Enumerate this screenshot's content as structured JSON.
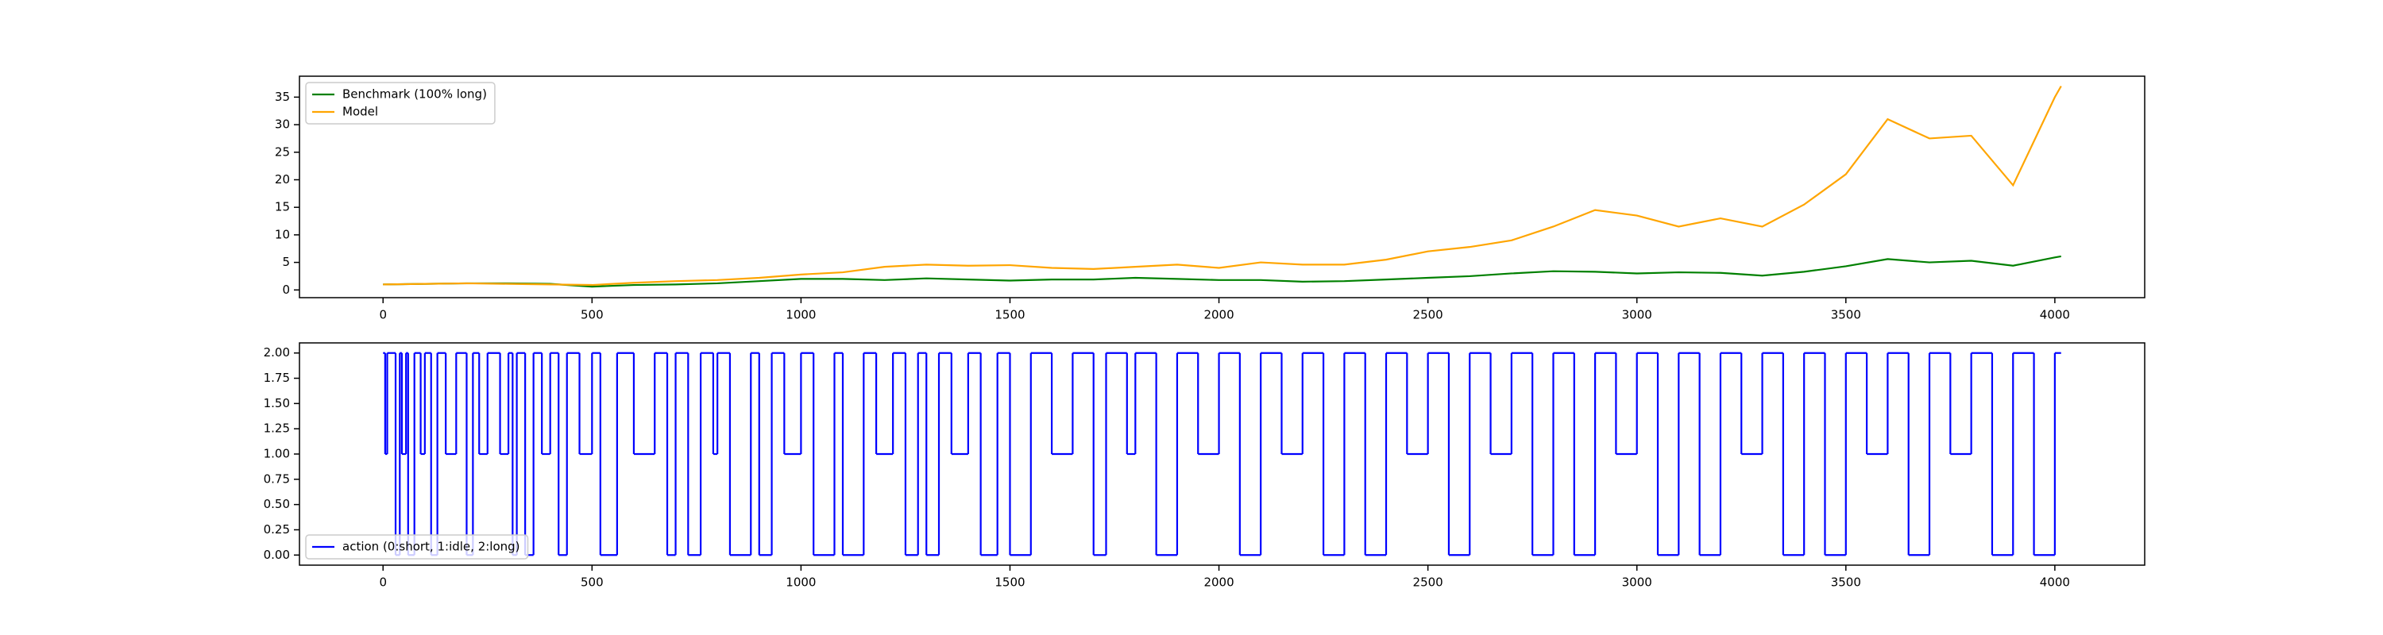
{
  "chart_data": [
    {
      "type": "line",
      "x": [
        0,
        100,
        200,
        300,
        400,
        500,
        600,
        700,
        800,
        900,
        1000,
        1100,
        1200,
        1300,
        1400,
        1500,
        1600,
        1700,
        1800,
        1900,
        2000,
        2100,
        2200,
        2300,
        2400,
        2500,
        2600,
        2700,
        2800,
        2900,
        3000,
        3100,
        3200,
        3300,
        3400,
        3500,
        3600,
        3700,
        3800,
        3900,
        4000,
        4015
      ],
      "series": [
        {
          "name": "Benchmark (100% long)",
          "color": "#008000",
          "values": [
            1,
            1.1,
            1.2,
            1.2,
            1.1,
            0.6,
            0.9,
            1.0,
            1.2,
            1.6,
            2.0,
            2.0,
            1.8,
            2.1,
            1.9,
            1.7,
            1.9,
            1.9,
            2.2,
            2.0,
            1.8,
            1.8,
            1.5,
            1.6,
            1.9,
            2.2,
            2.5,
            3.0,
            3.4,
            3.3,
            3.0,
            3.2,
            3.1,
            2.6,
            3.3,
            4.3,
            5.6,
            5.0,
            5.3,
            4.4,
            5.9,
            6.1
          ]
        },
        {
          "name": "Model",
          "color": "#ffa500",
          "values": [
            1,
            1.1,
            1.2,
            1.1,
            1.0,
            0.9,
            1.3,
            1.6,
            1.8,
            2.2,
            2.8,
            3.2,
            4.2,
            4.6,
            4.4,
            4.5,
            4.0,
            3.8,
            4.2,
            4.6,
            4.0,
            5.0,
            4.6,
            4.6,
            5.5,
            7.0,
            7.8,
            9.0,
            11.5,
            14.5,
            13.5,
            11.5,
            13.0,
            11.5,
            15.5,
            21.0,
            31.0,
            27.5,
            28.0,
            19.0,
            35.0,
            37.0
          ]
        }
      ],
      "xlim": [
        -200,
        4215
      ],
      "xticks": [
        0,
        500,
        1000,
        1500,
        2000,
        2500,
        3000,
        3500,
        4000
      ],
      "ylim": [
        -1.4,
        38.8
      ],
      "yticks": [
        0,
        5,
        10,
        15,
        20,
        25,
        30,
        35
      ],
      "legend": "upper left"
    },
    {
      "type": "step",
      "x": [
        0,
        5,
        10,
        30,
        40,
        45,
        55,
        60,
        75,
        90,
        100,
        115,
        130,
        150,
        175,
        200,
        215,
        230,
        250,
        280,
        300,
        310,
        320,
        340,
        360,
        380,
        400,
        420,
        440,
        470,
        500,
        520,
        560,
        600,
        650,
        680,
        700,
        730,
        760,
        790,
        800,
        830,
        880,
        900,
        930,
        960,
        1000,
        1030,
        1080,
        1100,
        1150,
        1180,
        1220,
        1250,
        1280,
        1300,
        1330,
        1360,
        1400,
        1430,
        1470,
        1500,
        1550,
        1600,
        1650,
        1700,
        1730,
        1780,
        1800,
        1850,
        1900,
        1950,
        2000,
        2050,
        2100,
        2150,
        2200,
        2250,
        2300,
        2350,
        2400,
        2450,
        2500,
        2550,
        2600,
        2650,
        2700,
        2750,
        2800,
        2850,
        2900,
        2950,
        3000,
        3050,
        3100,
        3150,
        3200,
        3250,
        3300,
        3350,
        3400,
        3450,
        3500,
        3550,
        3600,
        3650,
        3700,
        3750,
        3800,
        3850,
        3900,
        3950,
        4000,
        4015
      ],
      "series": [
        {
          "name": "action (0:short, 1:idle, 2:long)",
          "color": "#0000ff",
          "values": [
            2,
            1,
            2,
            0,
            2,
            1,
            2,
            0,
            2,
            1,
            2,
            0,
            2,
            1,
            2,
            0,
            2,
            1,
            2,
            1,
            2,
            0,
            2,
            0,
            2,
            1,
            2,
            0,
            2,
            1,
            2,
            0,
            2,
            1,
            2,
            0,
            2,
            0,
            2,
            1,
            2,
            0,
            2,
            0,
            2,
            1,
            2,
            0,
            2,
            0,
            2,
            1,
            2,
            0,
            2,
            0,
            2,
            1,
            2,
            0,
            2,
            0,
            2,
            1,
            2,
            0,
            2,
            1,
            2,
            0,
            2,
            1,
            2,
            0,
            2,
            1,
            2,
            0,
            2,
            0,
            2,
            1,
            2,
            0,
            2,
            1,
            2,
            0,
            2,
            0,
            2,
            1,
            2,
            0,
            2,
            0,
            2,
            1,
            2,
            0,
            2,
            0,
            2,
            1,
            2,
            0,
            2,
            1,
            2,
            0,
            2,
            0,
            2,
            2
          ]
        }
      ],
      "xlim": [
        -200,
        4215
      ],
      "xticks": [
        0,
        500,
        1000,
        1500,
        2000,
        2500,
        3000,
        3500,
        4000
      ],
      "ylim": [
        -0.1,
        2.1
      ],
      "yticks": [
        {
          "value": 0,
          "label": "0.00"
        },
        {
          "value": 0.25,
          "label": "0.25"
        },
        {
          "value": 0.5,
          "label": "0.50"
        },
        {
          "value": 0.75,
          "label": "0.75"
        },
        {
          "value": 1,
          "label": "1.00"
        },
        {
          "value": 1.25,
          "label": "1.25"
        },
        {
          "value": 1.5,
          "label": "1.50"
        },
        {
          "value": 1.75,
          "label": "1.75"
        },
        {
          "value": 2,
          "label": "2.00"
        }
      ],
      "legend": "lower left"
    }
  ]
}
